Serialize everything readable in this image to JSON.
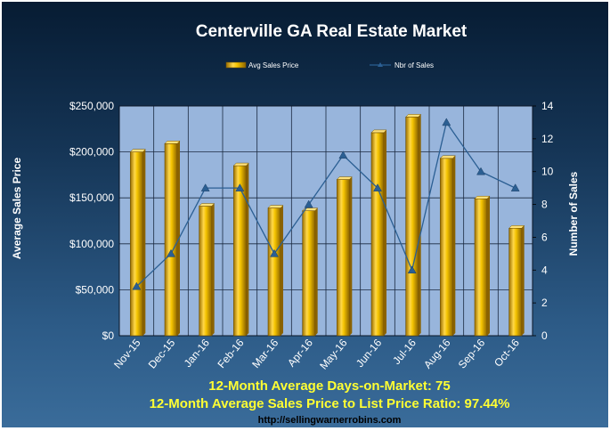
{
  "chart_data": {
    "type": "bar",
    "title": "Centerville GA Real Estate Market",
    "categories": [
      "Nov-15",
      "Dec-15",
      "Jan-16",
      "Feb-16",
      "Mar-16",
      "Apr-16",
      "May-16",
      "Jun-16",
      "Jul-16",
      "Aug-16",
      "Sep-16",
      "Oct-16"
    ],
    "series": [
      {
        "name": "Avg Sales Price",
        "type": "bar",
        "axis": "left",
        "values": [
          200000,
          209000,
          141000,
          185000,
          139000,
          136000,
          170000,
          221000,
          238000,
          193000,
          149000,
          117000
        ]
      },
      {
        "name": "Nbr of Sales",
        "type": "line",
        "axis": "right",
        "values": [
          3,
          5,
          9,
          9,
          5,
          8,
          11,
          9,
          4,
          13,
          10,
          9
        ]
      }
    ],
    "ylabel": "Average Sales Price",
    "y2label": "Number of Sales",
    "ylim": [
      0,
      250000
    ],
    "y2lim": [
      0,
      14
    ],
    "yticks": [
      "$0",
      "$50,000",
      "$100,000",
      "$150,000",
      "$200,000",
      "$250,000"
    ],
    "y2ticks": [
      "0",
      "2",
      "4",
      "6",
      "8",
      "10",
      "12",
      "14"
    ],
    "grid": true,
    "legend_position": "top"
  },
  "footer": {
    "line1": "12-Month Average Days-on-Market: 75",
    "line2": "12-Month Average Sales Price to List Price Ratio: 97.44%",
    "url": "http://sellingwarnerrobins.com"
  },
  "colors": {
    "bar": "#f2c200",
    "bar_dark": "#a87a00",
    "line": "#2b5f93",
    "plot_bg": "#98b5dc",
    "grid": "#1a2a40",
    "footer_text": "#ffff33"
  }
}
